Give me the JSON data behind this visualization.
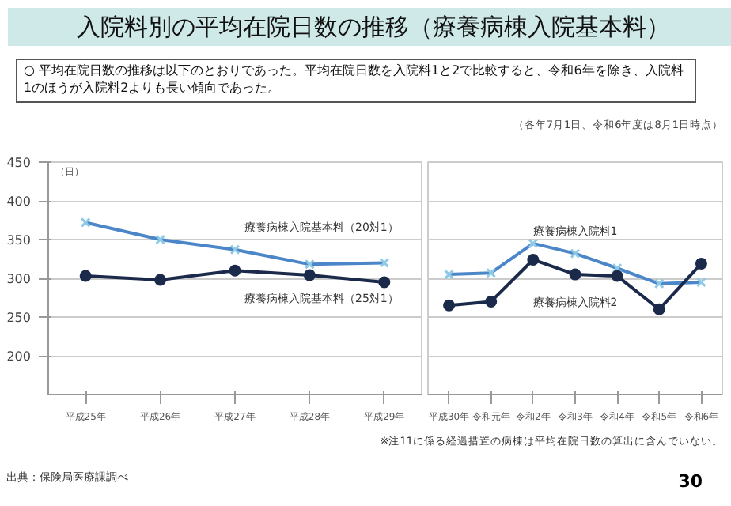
{
  "chart_data": [
    {
      "type": "line",
      "title": "入院料別の平均在院日数の推移（療養病棟入院基本料）",
      "subtitle": "○ 平均在院日数の推移は以下のとおりであった。平均在院日数を入院料1と2で比較すると、令和6年を除き、入院料1のほうが入院料2よりも長い傾向であった。",
      "annotations": [
        "（日）"
      ],
      "categories": [
        "平成25年",
        "平成26年",
        "平成27年",
        "平成28年",
        "平成29年"
      ],
      "ylim": [
        150,
        450
      ],
      "yticks": [
        200,
        250,
        300,
        350,
        400,
        450
      ],
      "grid": "y",
      "series": [
        {
          "name": "療養病棟入院基本料（20対1）",
          "color": "#4a86c8",
          "marker": "cross",
          "values": [
            372,
            350,
            337,
            318,
            320
          ]
        },
        {
          "name": "療養病棟入院基本料（25対1）",
          "color": "#1b2a4a",
          "marker": "circle",
          "values": [
            303,
            298,
            310,
            304,
            295
          ]
        }
      ]
    },
    {
      "type": "line",
      "annotations": [
        "（各年7月1日、令和6年度は8月1日時点）",
        "※注11に係る経過措置の病棟は平均在院日数の算出に含んでいない。",
        "出典：保険局医療課調べ",
        "30"
      ],
      "categories": [
        "平成30年",
        "令和元年",
        "令和2年",
        "令和3年",
        "令和4年",
        "令和5年",
        "令和6年"
      ],
      "ylim": [
        150,
        450
      ],
      "yticks": [
        200,
        250,
        300,
        350,
        400,
        450
      ],
      "grid": "y",
      "tick_labels": "x",
      "series": [
        {
          "name": "療養病棟入院料1",
          "color": "#4a86c8",
          "marker": "cross",
          "values": [
            305,
            307,
            345,
            332,
            313,
            293,
            295
          ]
        },
        {
          "name": "療養病棟入院料2",
          "color": "#1b2a4a",
          "marker": "circle",
          "values": [
            265,
            270,
            324,
            305,
            303,
            260,
            319
          ]
        }
      ]
    }
  ]
}
